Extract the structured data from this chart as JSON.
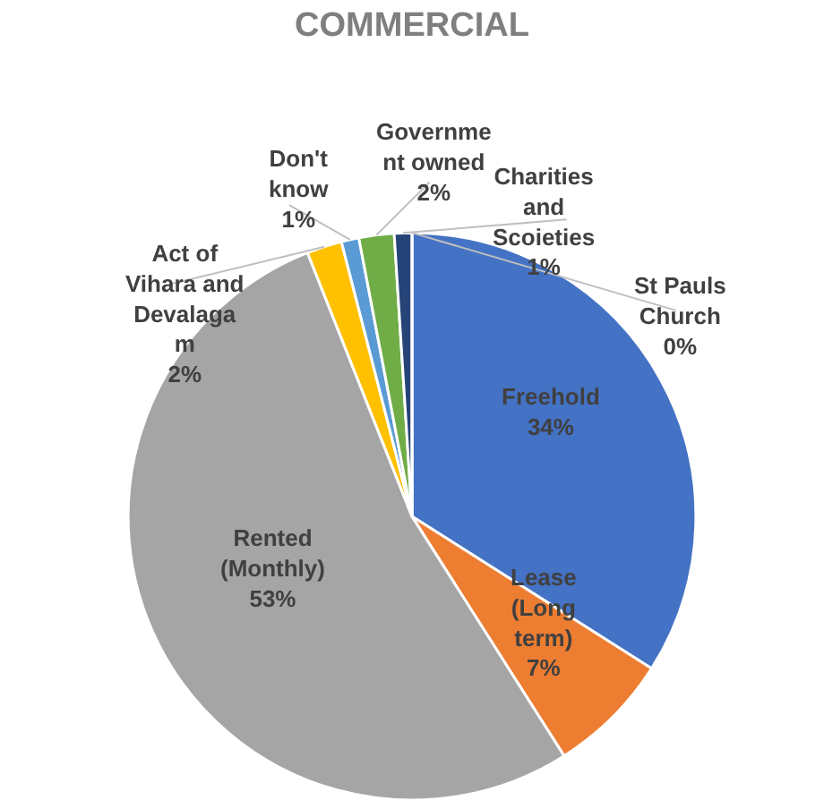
{
  "chart_data": {
    "type": "pie",
    "title": "COMMERCIAL",
    "categories": [
      "Freehold",
      "Lease\n(Long\nterm)",
      "Rented\n(Monthly)",
      "Act of\nVihara and\nDevalaga\nm",
      "Don't\nknow",
      "Governme\nnt owned",
      "Charities\nand\nScoieties",
      "St Pauls\nChurch"
    ],
    "values": [
      34,
      7,
      53,
      2,
      1,
      2,
      1,
      0
    ],
    "value_labels": [
      "34%",
      "7%",
      "53%",
      "2%",
      "1%",
      "2%",
      "1%",
      "0%"
    ],
    "colors": [
      "#4472c4",
      "#ed7d31",
      "#a5a5a5",
      "#ffc000",
      "#5b9bd5",
      "#70ad47",
      "#264478",
      "#43682b"
    ],
    "legend": false
  }
}
